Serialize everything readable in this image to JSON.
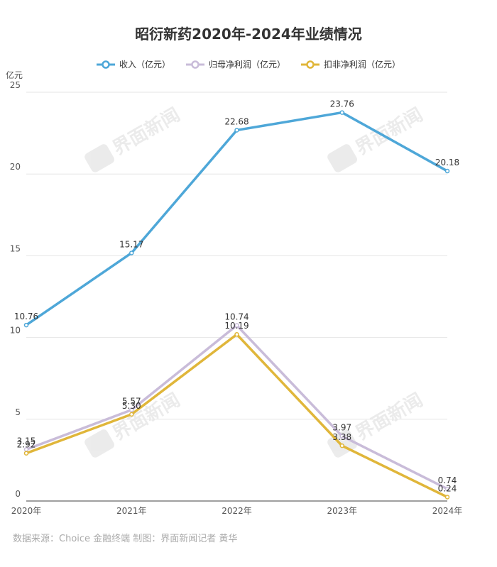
{
  "chart_data": {
    "type": "line",
    "title": "昭衍新药2020年-2024年业绩情况",
    "ylabel": "亿元",
    "xlabel": "",
    "categories": [
      "2020年",
      "2021年",
      "2022年",
      "2023年",
      "2024年"
    ],
    "ylim": [
      0,
      25
    ],
    "yticks": [
      0,
      5,
      10,
      15,
      20,
      25
    ],
    "grid": true,
    "legend_position": "top",
    "series": [
      {
        "name": "收入（亿元）",
        "color": "#4ea7d8",
        "values": [
          10.76,
          15.17,
          22.68,
          23.76,
          20.18
        ],
        "labels": [
          "10.76",
          "15.17",
          "22.68",
          "23.76",
          "20.18"
        ]
      },
      {
        "name": "归母净利润（亿元）",
        "color": "#c9bcd9",
        "values": [
          3.15,
          5.57,
          10.74,
          3.97,
          0.74
        ],
        "labels": [
          "3.15",
          "5.57",
          "10.74",
          "3.97",
          "0.74"
        ]
      },
      {
        "name": "扣非净利润（亿元）",
        "color": "#e0b63a",
        "values": [
          2.92,
          5.3,
          10.19,
          3.38,
          0.24
        ],
        "labels": [
          "2.92",
          "5.30",
          "10.19",
          "3.38",
          "0.24"
        ]
      }
    ],
    "watermark": "界面新闻"
  },
  "source_text": "数据来源：Choice 金融终端 制图：界面新闻记者 黄华"
}
